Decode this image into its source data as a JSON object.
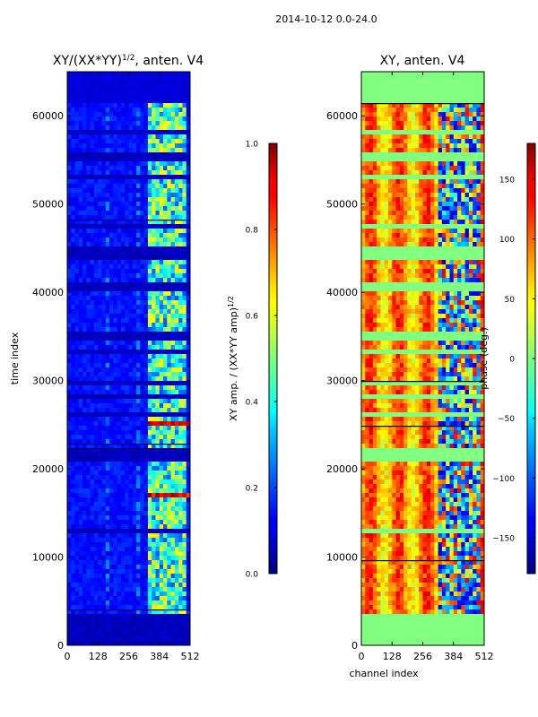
{
  "figure_title": "2014-10-12 0.0-24.0",
  "chart_data": [
    {
      "type": "heatmap",
      "title": "XY/(XX*YY)^{1/2}, anten. V4",
      "title_main": "XY/(XX*YY)",
      "title_sup": "1/2",
      "title_tail": ", anten. V4",
      "xlabel": "",
      "ylabel": "time index",
      "xlim": [
        0,
        512
      ],
      "ylim": [
        0,
        65000
      ],
      "xticks": [
        0,
        128,
        256,
        384,
        512
      ],
      "yticks": [
        0,
        10000,
        20000,
        30000,
        40000,
        50000,
        60000
      ],
      "colormap": "jet",
      "colorbar": {
        "label": "XY amp. / (XX*YY amp)^{1/2}",
        "label_main": "XY amp. / (XX*YY amp)",
        "label_sup": "1/2",
        "range": [
          0.0,
          1.0
        ],
        "ticks": [
          0.0,
          0.2,
          0.4,
          0.6,
          0.8,
          1.0
        ]
      }
    },
    {
      "type": "heatmap",
      "title": "XY, anten. V4",
      "xlabel": "channel index",
      "ylabel": "",
      "xlim": [
        0,
        512
      ],
      "ylim": [
        0,
        65000
      ],
      "xticks": [
        0,
        128,
        256,
        384,
        512
      ],
      "yticks": [
        0,
        10000,
        20000,
        30000,
        40000,
        50000,
        60000
      ],
      "colormap": "jet",
      "colorbar": {
        "label": "phase (deg.)",
        "range": [
          -180,
          180
        ],
        "ticks": [
          -150,
          -100,
          -50,
          0,
          50,
          100,
          150
        ]
      }
    }
  ]
}
